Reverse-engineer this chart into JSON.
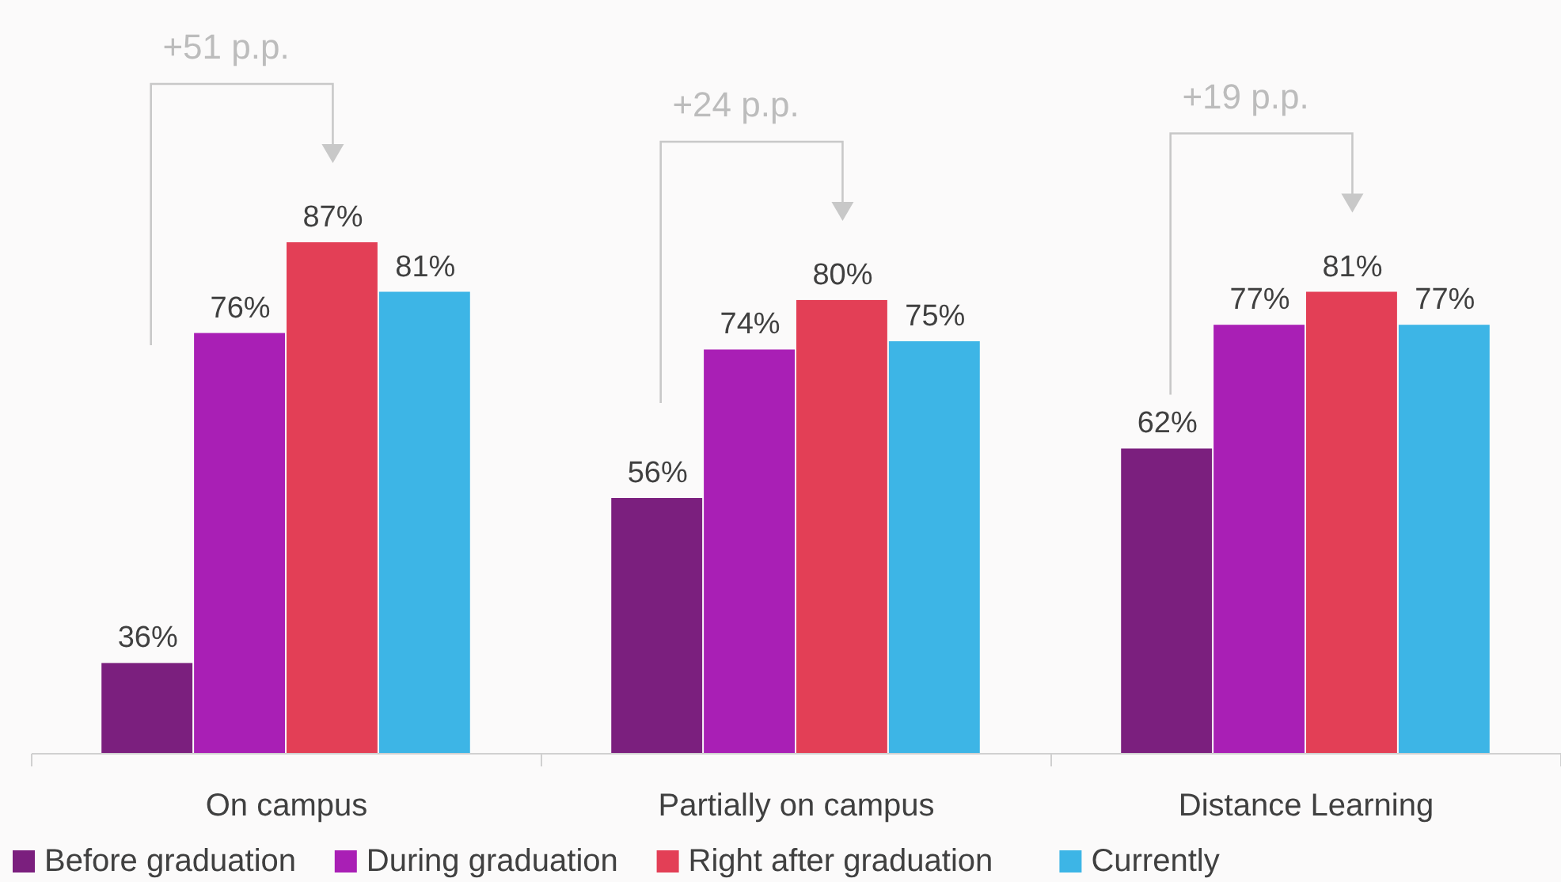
{
  "chart_data": {
    "type": "bar",
    "categories": [
      "On campus",
      "Partially on campus",
      "Distance Learning"
    ],
    "series": [
      {
        "name": "Before graduation",
        "color": "#7b1f7e",
        "values": [
          36,
          56,
          62
        ],
        "value_labels": [
          "36%",
          "56%",
          "62%"
        ]
      },
      {
        "name": "During graduation",
        "color": "#a91fb5",
        "values": [
          76,
          74,
          77
        ],
        "value_labels": [
          "76%",
          "74%",
          "77%"
        ]
      },
      {
        "name": "Right after graduation",
        "color": "#e33f56",
        "values": [
          87,
          80,
          81
        ],
        "value_labels": [
          "87%",
          "80%",
          "81%"
        ]
      },
      {
        "name": "Currently",
        "color": "#3db5e6",
        "values": [
          81,
          75,
          77
        ],
        "value_labels": [
          "81%",
          "75%",
          "77%"
        ]
      }
    ],
    "ylim": [
      25,
      87
    ],
    "tick_labels": "x",
    "legend": "bottom",
    "annotations": [
      "+51 p.p.",
      "+24 p.p.",
      "+19 p.p."
    ]
  }
}
